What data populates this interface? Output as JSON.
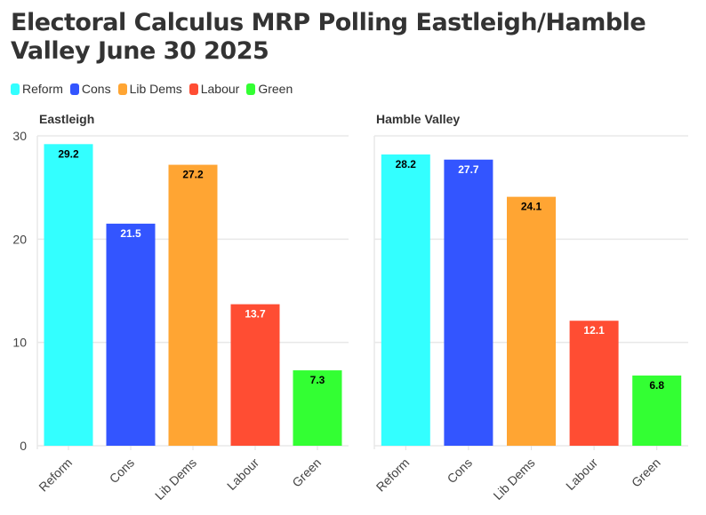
{
  "title": "Electoral Calculus MRP Polling Eastleigh/Hamble Valley June 30 2025",
  "legend": [
    {
      "label": "Reform",
      "color": "#33ffff"
    },
    {
      "label": "Cons",
      "color": "#3355ff"
    },
    {
      "label": "Lib Dems",
      "color": "#ffa533"
    },
    {
      "label": "Labour",
      "color": "#ff4d33"
    },
    {
      "label": "Green",
      "color": "#33ff33"
    }
  ],
  "chart_data": [
    {
      "type": "bar",
      "title": "Eastleigh",
      "categories": [
        "Reform",
        "Cons",
        "Lib Dems",
        "Labour",
        "Green"
      ],
      "values": [
        29.2,
        21.5,
        27.2,
        13.7,
        7.3
      ],
      "label_colors": [
        "#000000",
        "#ffffff",
        "#000000",
        "#ffffff",
        "#000000"
      ],
      "ylim": [
        0,
        30
      ],
      "yticks": [
        0,
        10,
        20,
        30
      ],
      "grid": true
    },
    {
      "type": "bar",
      "title": "Hamble Valley",
      "categories": [
        "Reform",
        "Cons",
        "Lib Dems",
        "Labour",
        "Green"
      ],
      "values": [
        28.2,
        27.7,
        24.1,
        12.1,
        6.8
      ],
      "label_colors": [
        "#000000",
        "#ffffff",
        "#000000",
        "#ffffff",
        "#000000"
      ],
      "ylim": [
        0,
        30
      ],
      "yticks": [
        0,
        10,
        20,
        30
      ],
      "grid": true
    }
  ]
}
